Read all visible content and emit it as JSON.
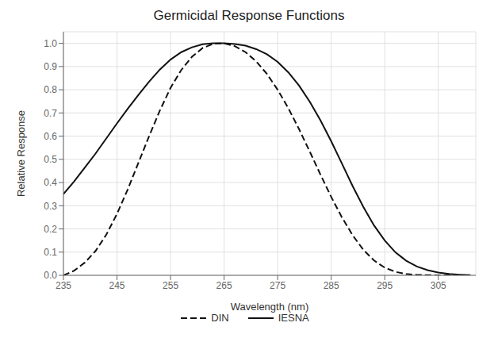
{
  "chart_data": {
    "type": "line",
    "title": "Germicidal Response Functions",
    "x_label": "Wavelength (nm)",
    "y_label": "Relative Response",
    "x": [
      235,
      237,
      239,
      241,
      243,
      245,
      247,
      249,
      251,
      253,
      255,
      257,
      259,
      261,
      263,
      265,
      267,
      269,
      271,
      273,
      275,
      277,
      279,
      281,
      283,
      285,
      287,
      289,
      291,
      293,
      295,
      297,
      299,
      301,
      303,
      305,
      307,
      309,
      311
    ],
    "series": [
      {
        "name": "IESNA",
        "color": "#111111",
        "line_style": "solid",
        "values": [
          0.35,
          0.405,
          0.465,
          0.525,
          0.59,
          0.655,
          0.718,
          0.778,
          0.835,
          0.887,
          0.93,
          0.962,
          0.983,
          0.996,
          1.0,
          1.0,
          0.997,
          0.99,
          0.975,
          0.953,
          0.92,
          0.875,
          0.818,
          0.748,
          0.668,
          0.578,
          0.482,
          0.385,
          0.295,
          0.215,
          0.15,
          0.099,
          0.063,
          0.038,
          0.022,
          0.012,
          0.006,
          0.003,
          0.001
        ]
      },
      {
        "name": "DIN",
        "color": "#111111",
        "line_style": "dashed",
        "values": [
          0.0,
          0.02,
          0.055,
          0.105,
          0.175,
          0.265,
          0.37,
          0.485,
          0.6,
          0.71,
          0.808,
          0.885,
          0.942,
          0.98,
          0.998,
          1.0,
          0.988,
          0.962,
          0.922,
          0.868,
          0.8,
          0.72,
          0.63,
          0.533,
          0.434,
          0.338,
          0.25,
          0.173,
          0.11,
          0.064,
          0.033,
          0.015,
          0.006,
          0.002,
          0.001,
          0.0,
          0.0,
          0.0,
          0.0
        ]
      }
    ],
    "xlim": [
      235,
      312
    ],
    "xticks": [
      235,
      245,
      255,
      265,
      275,
      285,
      295,
      305
    ],
    "ylim": [
      0.0,
      1.05
    ],
    "yticks": [
      {
        "value": 0,
        "label": "0.0"
      },
      0.1,
      0.2,
      0.3,
      0.4,
      0.5,
      0.6,
      0.7,
      0.8,
      0.9,
      {
        "value": 1,
        "label": "1.0"
      }
    ],
    "grid": true,
    "legend": "bottom"
  }
}
